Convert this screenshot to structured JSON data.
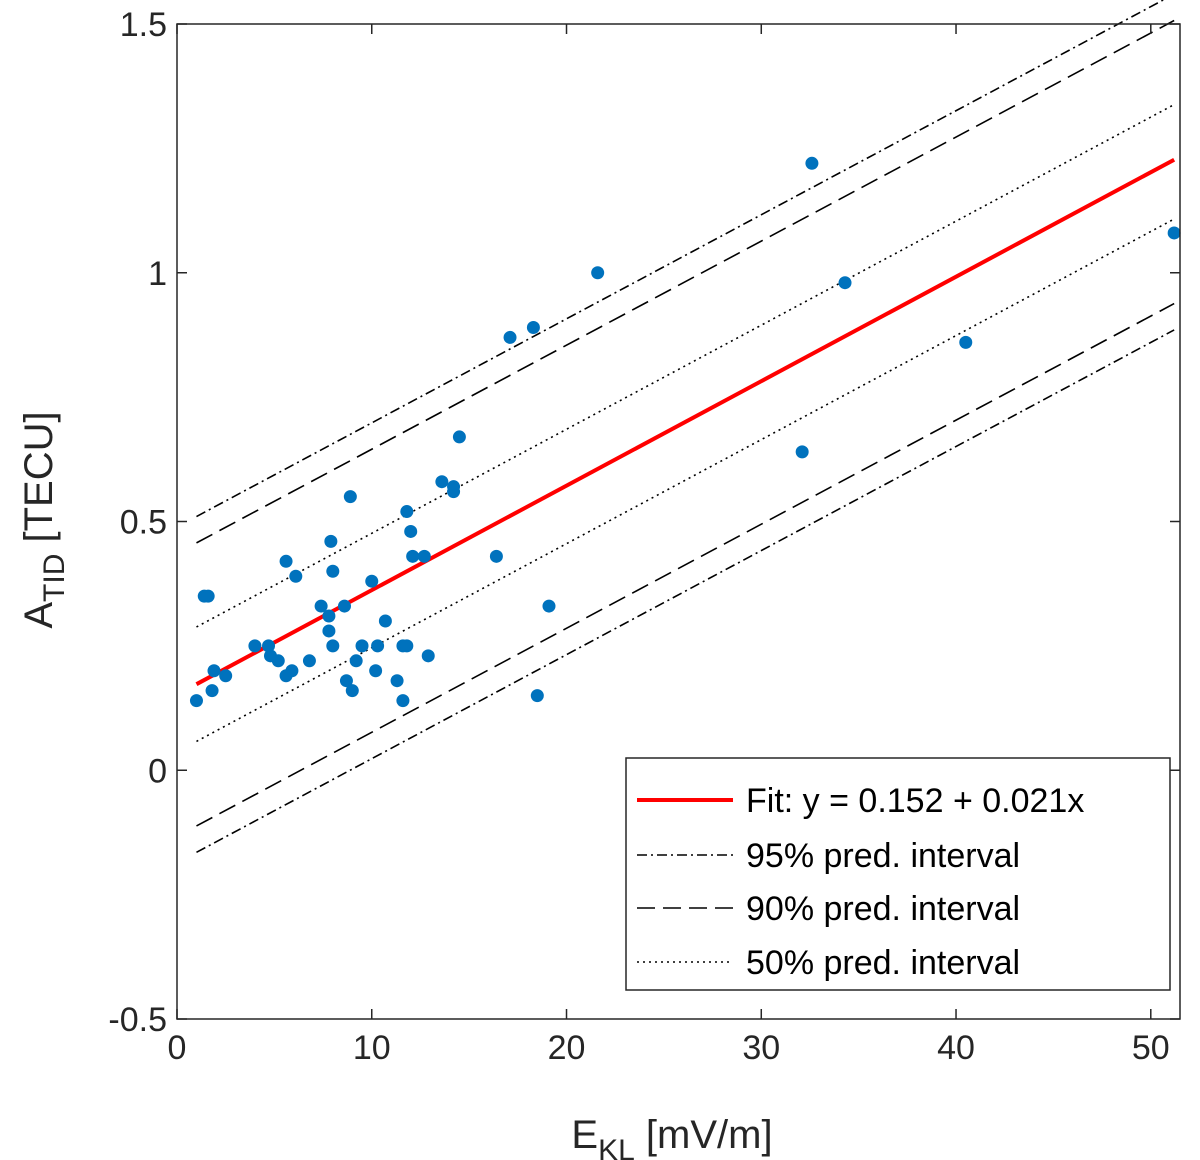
{
  "chart_data": {
    "type": "scatter",
    "title": "",
    "xlabel": {
      "main": "E",
      "sub": "KL",
      "unit": " [mV/m]"
    },
    "ylabel": {
      "main": "A",
      "sub": "TID",
      "unit": " [TECU]"
    },
    "xlim": [
      0,
      51.5
    ],
    "ylim": [
      -0.5,
      1.5
    ],
    "xticks": [
      0,
      10,
      20,
      30,
      40,
      50
    ],
    "yticks": [
      -0.5,
      0,
      0.5,
      1,
      1.5
    ],
    "ytick_labels": [
      "-0.5",
      "0",
      "0.5",
      "1",
      "1.5"
    ],
    "xtick_labels": [
      "0",
      "10",
      "20",
      "30",
      "40",
      "50"
    ],
    "colors": {
      "points": "#0072bd",
      "fit": "#ff0000",
      "intervals": "#000000",
      "axes": "#262626"
    },
    "points": [
      [
        1.0,
        0.14
      ],
      [
        1.4,
        0.35
      ],
      [
        1.6,
        0.35
      ],
      [
        1.8,
        0.16
      ],
      [
        1.9,
        0.2
      ],
      [
        2.5,
        0.19
      ],
      [
        4.0,
        0.25
      ],
      [
        4.7,
        0.25
      ],
      [
        4.8,
        0.23
      ],
      [
        5.2,
        0.22
      ],
      [
        5.6,
        0.42
      ],
      [
        5.6,
        0.19
      ],
      [
        5.9,
        0.2
      ],
      [
        6.1,
        0.39
      ],
      [
        6.8,
        0.22
      ],
      [
        7.4,
        0.33
      ],
      [
        7.8,
        0.28
      ],
      [
        7.8,
        0.31
      ],
      [
        7.9,
        0.46
      ],
      [
        8.0,
        0.4
      ],
      [
        8.0,
        0.25
      ],
      [
        8.6,
        0.33
      ],
      [
        8.7,
        0.18
      ],
      [
        8.9,
        0.55
      ],
      [
        9.0,
        0.16
      ],
      [
        9.2,
        0.22
      ],
      [
        9.5,
        0.25
      ],
      [
        10.0,
        0.38
      ],
      [
        10.2,
        0.2
      ],
      [
        10.3,
        0.25
      ],
      [
        10.7,
        0.3
      ],
      [
        11.3,
        0.18
      ],
      [
        11.6,
        0.25
      ],
      [
        11.6,
        0.14
      ],
      [
        11.8,
        0.25
      ],
      [
        11.8,
        0.52
      ],
      [
        12.0,
        0.48
      ],
      [
        12.1,
        0.43
      ],
      [
        12.7,
        0.43
      ],
      [
        12.9,
        0.23
      ],
      [
        13.6,
        0.58
      ],
      [
        14.2,
        0.56
      ],
      [
        14.2,
        0.57
      ],
      [
        14.5,
        0.67
      ],
      [
        16.4,
        0.43
      ],
      [
        17.1,
        0.87
      ],
      [
        18.3,
        0.89
      ],
      [
        18.5,
        0.15
      ],
      [
        19.1,
        0.33
      ],
      [
        21.6,
        1.0
      ],
      [
        32.1,
        0.64
      ],
      [
        32.6,
        1.22
      ],
      [
        34.3,
        0.98
      ],
      [
        40.5,
        0.86
      ],
      [
        51.2,
        1.08
      ]
    ],
    "fit": {
      "intercept": 0.152,
      "slope": 0.021,
      "x_range": [
        1.0,
        51.2
      ]
    },
    "intervals": [
      {
        "name": "95% pred. interval",
        "style": "dashdot",
        "lower": [
          [
            1.0,
            -0.165
          ],
          [
            51.2,
            0.885
          ]
        ],
        "upper": [
          [
            1.0,
            0.51
          ],
          [
            51.2,
            1.56
          ]
        ]
      },
      {
        "name": "90% pred. interval",
        "style": "dashed",
        "lower": [
          [
            1.0,
            -0.112
          ],
          [
            51.2,
            0.938
          ]
        ],
        "upper": [
          [
            1.0,
            0.457
          ],
          [
            51.2,
            1.507
          ]
        ]
      },
      {
        "name": "50% pred. interval",
        "style": "dotted",
        "lower": [
          [
            1.0,
            0.058
          ],
          [
            51.2,
            1.108
          ]
        ],
        "upper": [
          [
            1.0,
            0.288
          ],
          [
            51.2,
            1.338
          ]
        ]
      }
    ],
    "legend": {
      "position": "bottom-right",
      "entries": [
        "Fit: y = 0.152 + 0.021x",
        "95% pred. interval",
        "90% pred. interval",
        "50% pred. interval"
      ]
    }
  }
}
